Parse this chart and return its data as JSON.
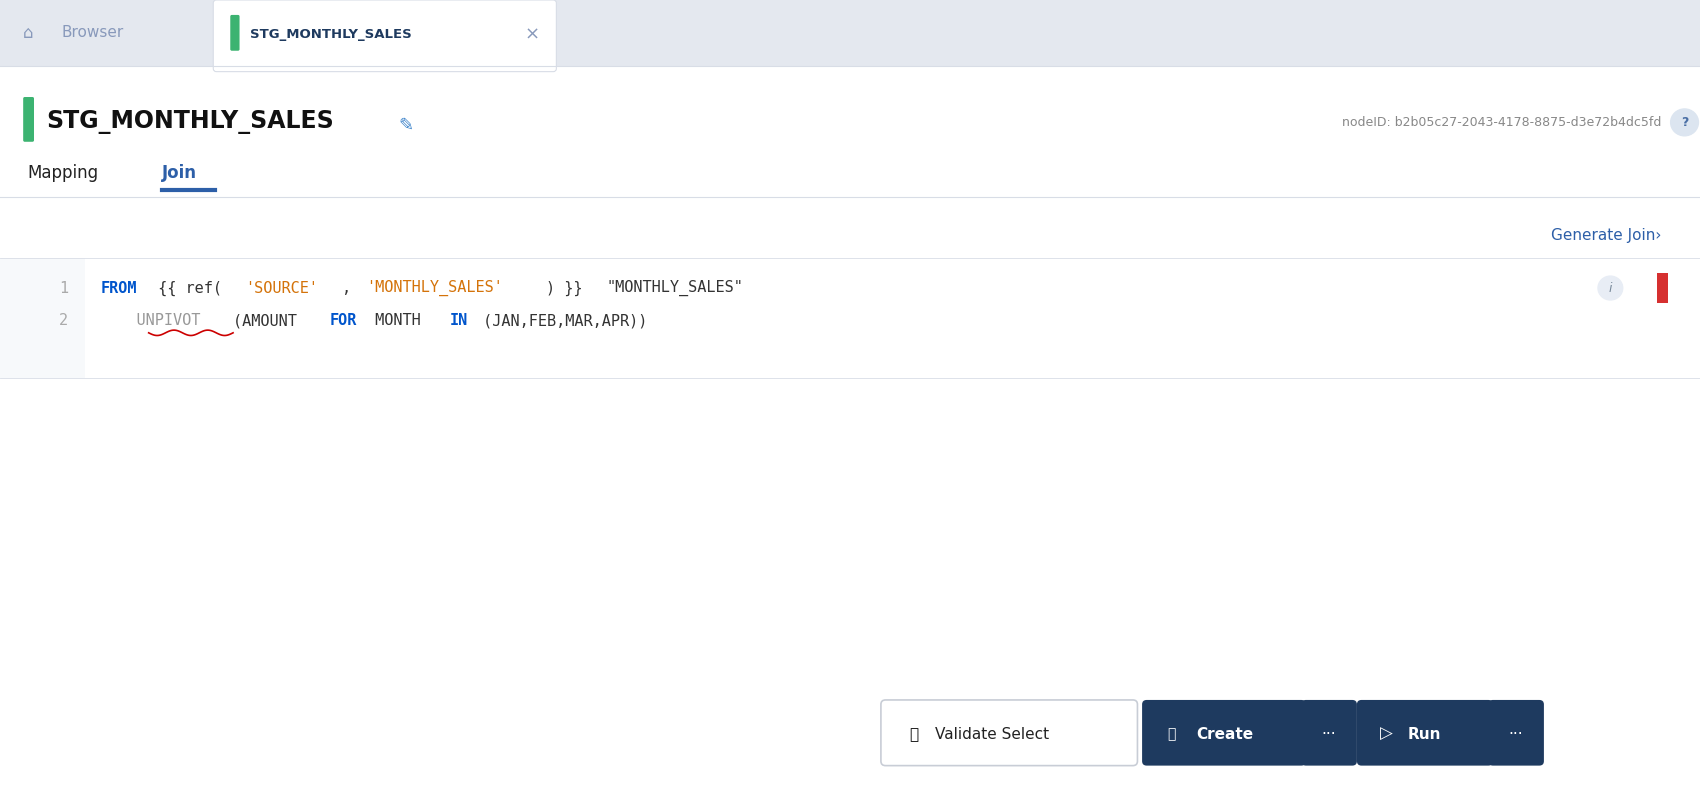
{
  "bg_color": "#ebeef2",
  "panel_color": "#ffffff",
  "tab_bar_color": "#e4e8ef",
  "active_tab_color": "#ffffff",
  "title": "STG_MONTHLY_SALES",
  "node_id_text": "nodeID: b2b05c27-2043-4178-8875-d3e72b4dc5fd",
  "mapping_label": "Mapping",
  "join_label": "Join",
  "generate_join": "Generate Join›",
  "line1_num": "1",
  "line2_num": "2",
  "line1_parts": [
    {
      "text": "FROM",
      "color": "#0055cc",
      "bold": true
    },
    {
      "text": " {{ ref(",
      "color": "#333333",
      "bold": false
    },
    {
      "text": "'SOURCE'",
      "color": "#d4730a",
      "bold": false
    },
    {
      "text": ", ",
      "color": "#333333",
      "bold": false
    },
    {
      "text": "'MONTHLY_SALES'",
      "color": "#d4730a",
      "bold": false
    },
    {
      "text": ") }} ",
      "color": "#333333",
      "bold": false
    },
    {
      "text": "\"MONTHLY_SALES\"",
      "color": "#333333",
      "bold": false
    }
  ],
  "line2_parts": [
    {
      "text": "    UNPIVOT",
      "color": "#999999",
      "bold": false
    },
    {
      "text": "(AMOUNT ",
      "color": "#333333",
      "bold": false
    },
    {
      "text": "FOR",
      "color": "#0055cc",
      "bold": true
    },
    {
      "text": " MONTH ",
      "color": "#333333",
      "bold": false
    },
    {
      "text": "IN",
      "color": "#0055cc",
      "bold": true
    },
    {
      "text": " (JAN,FEB,MAR,APR))",
      "color": "#333333",
      "bold": false
    }
  ],
  "validate_btn_text": "Validate Select",
  "create_btn_text": "Create",
  "run_btn_text": "Run",
  "btn_dark": "#1e3a5f",
  "join_color": "#2d5fa8",
  "green_color": "#3cb371",
  "browser_text": "Browser",
  "tab_title_color": "#1e3a5f",
  "underline_color": "#2d5fa8",
  "sep_color": "#d8dde6",
  "node_id_color": "#888888",
  "q_circle_color": "#dce5f0",
  "q_text_color": "#4a6fa5",
  "info_circle_color": "#e8edf5",
  "red_mark_color": "#d63030",
  "squiggle_color": "#cc0000",
  "validate_bg": "#ffffff",
  "validate_border": "#c8cdd6",
  "validate_text_color": "#222222"
}
